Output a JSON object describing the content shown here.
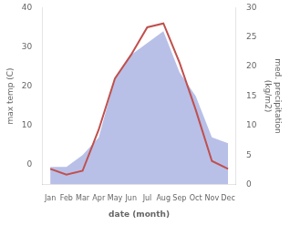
{
  "chart_data": {
    "type": "line",
    "categories": [
      "Jan",
      "Feb",
      "Mar",
      "Apr",
      "May",
      "Jun",
      "Jul",
      "Aug",
      "Sep",
      "Oct",
      "Nov",
      "Dec"
    ],
    "series": [
      {
        "type": "line",
        "color": "#c0504d",
        "values": [
          -1,
          -2.5,
          -1.5,
          9,
          22,
          28,
          35,
          36,
          26,
          14,
          1,
          -1
        ]
      },
      {
        "type": "area",
        "color": "#b8c0e8",
        "axis": "y2",
        "values": [
          3,
          3,
          5,
          8,
          18,
          22,
          24,
          26,
          19,
          15,
          8,
          7
        ]
      }
    ],
    "xlabel": "date (month)",
    "ylabel": "max temp (C)",
    "y2label": "med. precipitation\n(kg/m2)",
    "ylim": [
      -5,
      40
    ],
    "yticks": [
      0,
      10,
      20,
      30,
      40
    ],
    "y2lim": [
      0,
      30
    ],
    "y2ticks": [
      0,
      5,
      10,
      15,
      20,
      25,
      30
    ],
    "grid": false
  }
}
